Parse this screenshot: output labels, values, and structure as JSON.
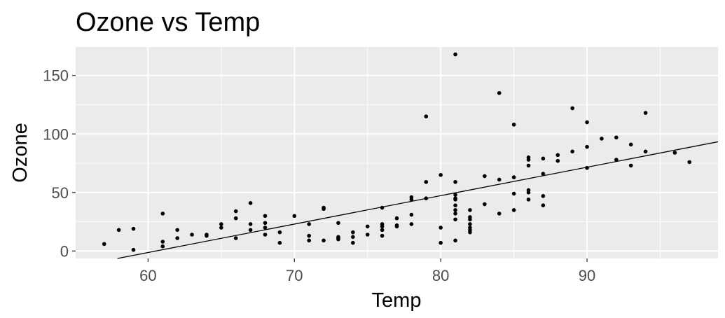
{
  "chart_data": {
    "type": "scatter",
    "title": "Ozone vs Temp",
    "xlabel": "Temp",
    "ylabel": "Ozone",
    "xlim": [
      55.05,
      98.95
    ],
    "ylim": [
      -6.35,
      174.35
    ],
    "x_ticks": [
      "60",
      "70",
      "80",
      "90"
    ],
    "y_ticks": [
      "0",
      "50",
      "100",
      "150"
    ],
    "grid": true,
    "panel_background": "#ebebeb",
    "point_color": "#000000",
    "fit_line": {
      "type": "linear",
      "intercept": -146.99,
      "slope": 2.4287
    },
    "points": [
      {
        "x": 57,
        "y": 6
      },
      {
        "x": 58,
        "y": 18
      },
      {
        "x": 59,
        "y": 19
      },
      {
        "x": 59,
        "y": 1
      },
      {
        "x": 61,
        "y": 32
      },
      {
        "x": 61,
        "y": 8
      },
      {
        "x": 61,
        "y": 4
      },
      {
        "x": 62,
        "y": 18
      },
      {
        "x": 62,
        "y": 11
      },
      {
        "x": 63,
        "y": 14
      },
      {
        "x": 64,
        "y": 14
      },
      {
        "x": 64,
        "y": 13
      },
      {
        "x": 65,
        "y": 23
      },
      {
        "x": 65,
        "y": 20
      },
      {
        "x": 66,
        "y": 34
      },
      {
        "x": 66,
        "y": 28
      },
      {
        "x": 66,
        "y": 11
      },
      {
        "x": 67,
        "y": 41
      },
      {
        "x": 67,
        "y": 23
      },
      {
        "x": 67,
        "y": 18
      },
      {
        "x": 68,
        "y": 30
      },
      {
        "x": 68,
        "y": 24
      },
      {
        "x": 68,
        "y": 20
      },
      {
        "x": 68,
        "y": 14
      },
      {
        "x": 69,
        "y": 16
      },
      {
        "x": 69,
        "y": 7
      },
      {
        "x": 70,
        "y": 30
      },
      {
        "x": 71,
        "y": 23
      },
      {
        "x": 71,
        "y": 13
      },
      {
        "x": 71,
        "y": 9
      },
      {
        "x": 72,
        "y": 37
      },
      {
        "x": 72,
        "y": 36
      },
      {
        "x": 72,
        "y": 9
      },
      {
        "x": 73,
        "y": 24
      },
      {
        "x": 73,
        "y": 12
      },
      {
        "x": 73,
        "y": 11
      },
      {
        "x": 73,
        "y": 10
      },
      {
        "x": 74,
        "y": 16
      },
      {
        "x": 74,
        "y": 12
      },
      {
        "x": 74,
        "y": 7
      },
      {
        "x": 75,
        "y": 21
      },
      {
        "x": 75,
        "y": 14
      },
      {
        "x": 76,
        "y": 37
      },
      {
        "x": 76,
        "y": 23
      },
      {
        "x": 76,
        "y": 21
      },
      {
        "x": 76,
        "y": 18
      },
      {
        "x": 76,
        "y": 13
      },
      {
        "x": 77,
        "y": 28
      },
      {
        "x": 77,
        "y": 22
      },
      {
        "x": 77,
        "y": 21
      },
      {
        "x": 78,
        "y": 46
      },
      {
        "x": 78,
        "y": 44
      },
      {
        "x": 78,
        "y": 31
      },
      {
        "x": 78,
        "y": 23
      },
      {
        "x": 79,
        "y": 115
      },
      {
        "x": 79,
        "y": 59
      },
      {
        "x": 79,
        "y": 45
      },
      {
        "x": 80,
        "y": 65
      },
      {
        "x": 80,
        "y": 20
      },
      {
        "x": 80,
        "y": 7
      },
      {
        "x": 81,
        "y": 168
      },
      {
        "x": 81,
        "y": 59
      },
      {
        "x": 81,
        "y": 48
      },
      {
        "x": 81,
        "y": 45
      },
      {
        "x": 81,
        "y": 44
      },
      {
        "x": 81,
        "y": 39
      },
      {
        "x": 81,
        "y": 35
      },
      {
        "x": 81,
        "y": 32
      },
      {
        "x": 81,
        "y": 27
      },
      {
        "x": 81,
        "y": 9
      },
      {
        "x": 82,
        "y": 35
      },
      {
        "x": 82,
        "y": 29
      },
      {
        "x": 82,
        "y": 27
      },
      {
        "x": 82,
        "y": 23
      },
      {
        "x": 82,
        "y": 20
      },
      {
        "x": 82,
        "y": 18
      },
      {
        "x": 82,
        "y": 16
      },
      {
        "x": 83,
        "y": 64
      },
      {
        "x": 83,
        "y": 40
      },
      {
        "x": 84,
        "y": 135
      },
      {
        "x": 84,
        "y": 61
      },
      {
        "x": 84,
        "y": 32
      },
      {
        "x": 85,
        "y": 108
      },
      {
        "x": 85,
        "y": 63
      },
      {
        "x": 85,
        "y": 49
      },
      {
        "x": 85,
        "y": 35
      },
      {
        "x": 86,
        "y": 80
      },
      {
        "x": 86,
        "y": 78
      },
      {
        "x": 86,
        "y": 73
      },
      {
        "x": 86,
        "y": 52
      },
      {
        "x": 86,
        "y": 50
      },
      {
        "x": 86,
        "y": 44
      },
      {
        "x": 87,
        "y": 79
      },
      {
        "x": 87,
        "y": 66
      },
      {
        "x": 87,
        "y": 47
      },
      {
        "x": 87,
        "y": 39
      },
      {
        "x": 88,
        "y": 82
      },
      {
        "x": 88,
        "y": 77
      },
      {
        "x": 89,
        "y": 122
      },
      {
        "x": 89,
        "y": 85
      },
      {
        "x": 90,
        "y": 110
      },
      {
        "x": 90,
        "y": 89
      },
      {
        "x": 90,
        "y": 71
      },
      {
        "x": 91,
        "y": 96
      },
      {
        "x": 92,
        "y": 97
      },
      {
        "x": 92,
        "y": 78
      },
      {
        "x": 93,
        "y": 91
      },
      {
        "x": 93,
        "y": 73
      },
      {
        "x": 94,
        "y": 118
      },
      {
        "x": 94,
        "y": 85
      },
      {
        "x": 96,
        "y": 84
      },
      {
        "x": 97,
        "y": 76
      }
    ]
  }
}
